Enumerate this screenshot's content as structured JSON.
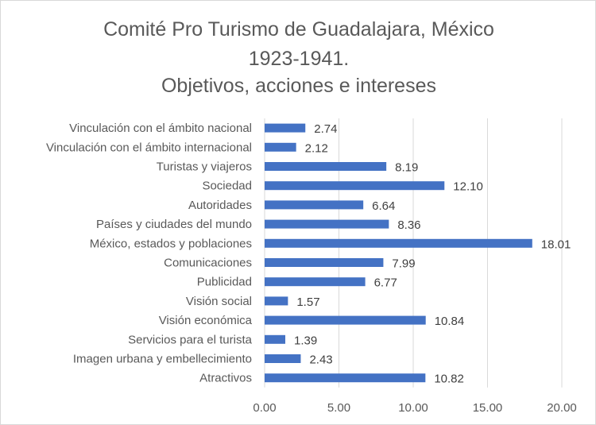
{
  "chart_data": {
    "type": "bar",
    "orientation": "horizontal",
    "title_lines": [
      "Comité Pro Turismo de Guadalajara, México",
      "1923-1941.",
      "Objetivos, acciones e intereses"
    ],
    "xlabel": "",
    "ylabel": "",
    "categories": [
      "Vinculación con el ámbito nacional",
      "Vinculación con el ámbito internacional",
      "Turistas y viajeros",
      "Sociedad",
      "Autoridades",
      "Países y ciudades del mundo",
      "México, estados y poblaciones",
      "Comunicaciones",
      "Publicidad",
      "Visión social",
      "Visión económica",
      "Servicios para el turista",
      "Imagen urbana y embellecimiento",
      "Atractivos"
    ],
    "values": [
      2.74,
      2.12,
      8.19,
      12.1,
      6.64,
      8.36,
      18.01,
      7.99,
      6.77,
      1.57,
      10.84,
      1.39,
      2.43,
      10.82
    ],
    "data_labels": [
      "2.74",
      "2.12",
      "8.19",
      "12.10",
      "6.64",
      "8.36",
      "18.01",
      "7.99",
      "6.77",
      "1.57",
      "10.84",
      "1.39",
      "2.43",
      "10.82"
    ],
    "xlim": [
      0,
      20
    ],
    "x_ticks": [
      0,
      5,
      10,
      15,
      20
    ],
    "x_tick_labels": [
      "0.00",
      "5.00",
      "10.00",
      "15.00",
      "20.00"
    ],
    "grid": true,
    "legend": "none",
    "bar_color": "#4472c4",
    "grid_color": "#d9d9d9",
    "text_color": "#595959"
  }
}
